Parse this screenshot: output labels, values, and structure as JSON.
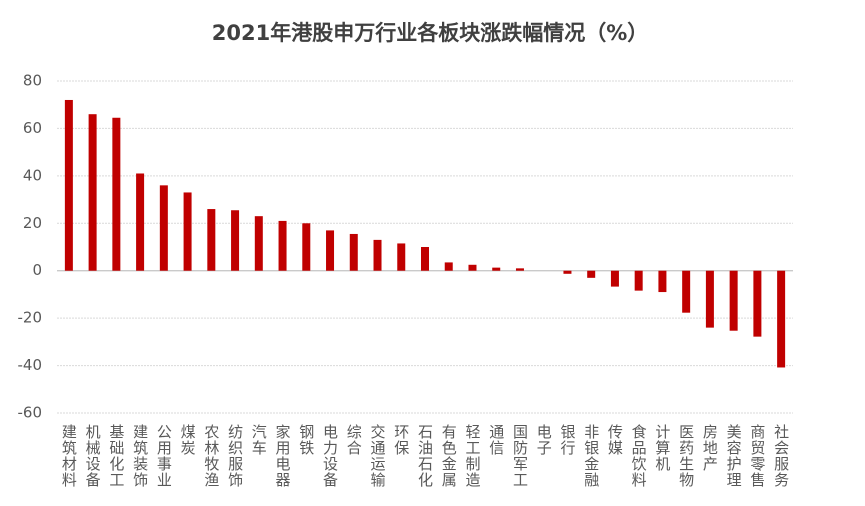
{
  "chart_data": {
    "type": "bar",
    "title": "2021年港股申万行业各板块涨跌幅情况（%）",
    "categories": [
      "建筑材料",
      "机械设备",
      "基础化工",
      "建筑装饰",
      "公用事业",
      "煤炭",
      "农林牧渔",
      "纺织服饰",
      "汽车",
      "家用电器",
      "钢铁",
      "电力设备",
      "综合",
      "交通运输",
      "环保",
      "石油石化",
      "有色金属",
      "轻工制造",
      "通信",
      "国防军工",
      "电子",
      "银行",
      "非银金融",
      "传媒",
      "食品饮料",
      "计算机",
      "医药生物",
      "房地产",
      "美容护理",
      "商贸零售",
      "社会服务"
    ],
    "values": [
      72,
      66,
      64.5,
      41,
      36,
      33,
      26,
      25.5,
      23,
      21,
      20,
      17,
      15.5,
      13,
      11.5,
      10,
      3.5,
      2.5,
      1.3,
      1,
      0,
      -1.3,
      -3,
      -6.7,
      -8.4,
      -9,
      -17.7,
      -24,
      -25.3,
      -27.8,
      -40.8
    ],
    "color": "#c00000",
    "ylim": [
      -60,
      80
    ],
    "yticks": [
      -60,
      -40,
      -20,
      0,
      20,
      40,
      60,
      80
    ],
    "grid": true
  }
}
